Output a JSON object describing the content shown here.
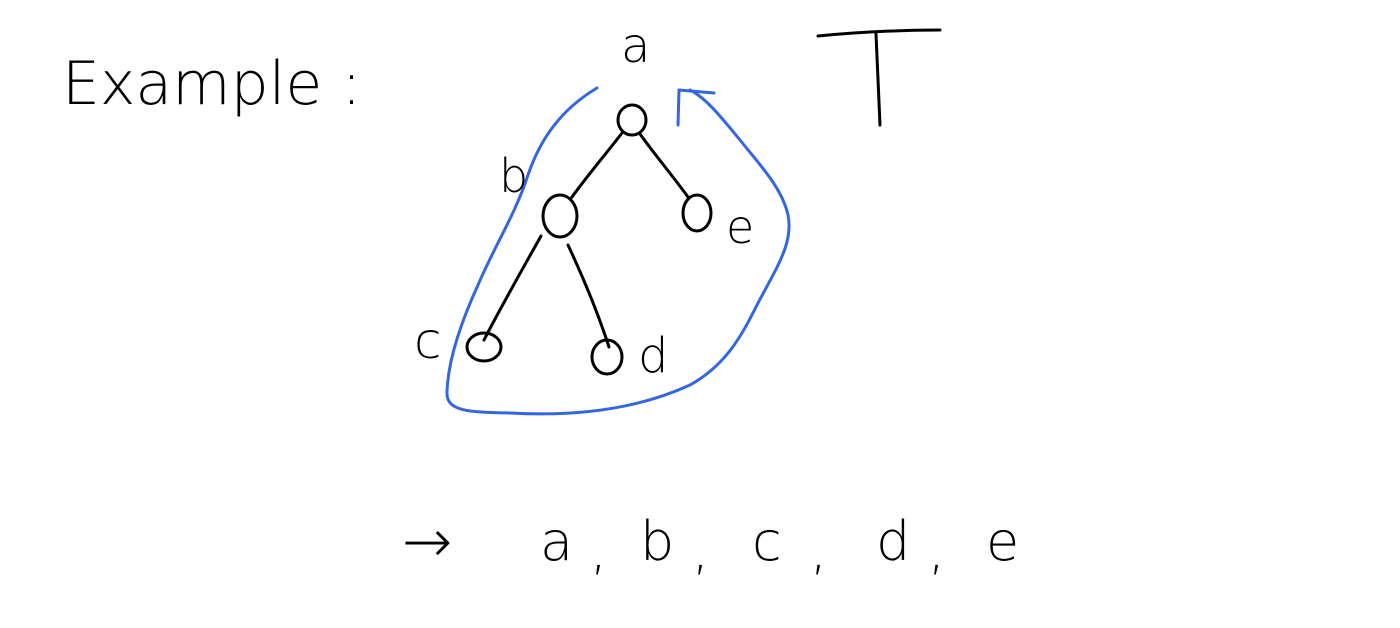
{
  "heading": "Example :",
  "tree": {
    "nodes": [
      {
        "id": "a",
        "label": "a"
      },
      {
        "id": "b",
        "label": "b"
      },
      {
        "id": "c",
        "label": "c"
      },
      {
        "id": "d",
        "label": "d"
      },
      {
        "id": "e",
        "label": "e"
      }
    ],
    "edges": [
      [
        "a",
        "b"
      ],
      [
        "a",
        "e"
      ],
      [
        "b",
        "c"
      ],
      [
        "b",
        "d"
      ]
    ],
    "root_symbol": "T"
  },
  "traversal": {
    "arrow": "→",
    "sequence": [
      "a",
      "b",
      "c",
      "d",
      "e"
    ],
    "separator": ","
  },
  "colors": {
    "ink": "#000000",
    "traversal_path": "#3466e0"
  }
}
